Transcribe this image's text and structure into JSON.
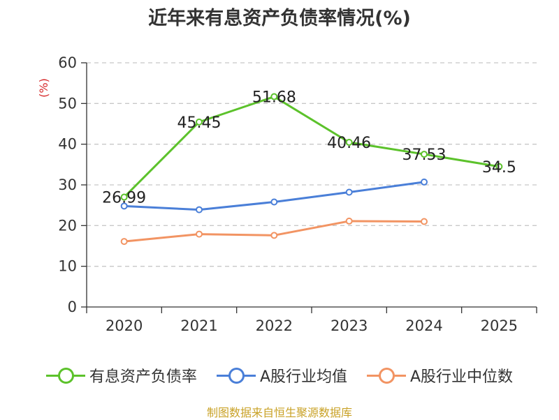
{
  "title": "近年来有息资产负债率情况(%)",
  "source": "制图数据来自恒生聚源数据库",
  "chart_data": {
    "type": "line",
    "title": "近年来有息资产负债率情况(%)",
    "ylabel": "(%)",
    "xlabel": "",
    "ylim": [
      0,
      60
    ],
    "yticks": [
      0,
      10,
      20,
      30,
      40,
      50,
      60
    ],
    "categories": [
      "2020",
      "2021",
      "2022",
      "2023",
      "2024",
      "2025"
    ],
    "grid": true,
    "legend_position": "bottom",
    "series": [
      {
        "name": "有息资产负债率",
        "color": "#5cc22b",
        "values": [
          26.99,
          45.45,
          51.68,
          40.46,
          37.53,
          34.5
        ],
        "labels": [
          "26.99",
          "45.45",
          "51.68",
          "40.46",
          "37.53",
          "34.5"
        ],
        "show_labels": true
      },
      {
        "name": "A股行业均值",
        "color": "#4a7fd8",
        "values": [
          24.8,
          23.9,
          25.8,
          28.2,
          30.7,
          null
        ],
        "show_labels": false
      },
      {
        "name": "A股行业中位数",
        "color": "#f29463",
        "values": [
          16.1,
          17.9,
          17.6,
          21.1,
          21.0,
          null
        ],
        "show_labels": false
      }
    ]
  }
}
